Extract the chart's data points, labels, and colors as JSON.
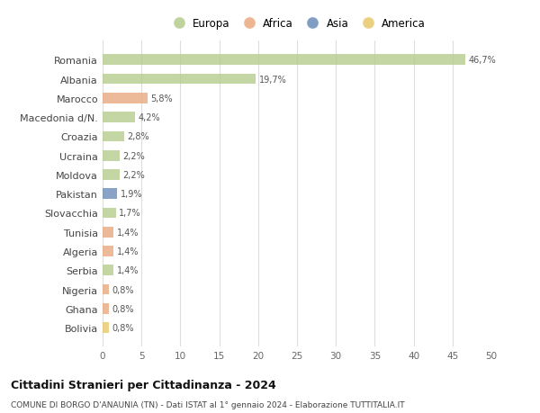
{
  "countries": [
    "Romania",
    "Albania",
    "Marocco",
    "Macedonia d/N.",
    "Croazia",
    "Ucraina",
    "Moldova",
    "Pakistan",
    "Slovacchia",
    "Tunisia",
    "Algeria",
    "Serbia",
    "Nigeria",
    "Ghana",
    "Bolivia"
  ],
  "values": [
    46.7,
    19.7,
    5.8,
    4.2,
    2.8,
    2.2,
    2.2,
    1.9,
    1.7,
    1.4,
    1.4,
    1.4,
    0.8,
    0.8,
    0.8
  ],
  "labels": [
    "46,7%",
    "19,7%",
    "5,8%",
    "4,2%",
    "2,8%",
    "2,2%",
    "2,2%",
    "1,9%",
    "1,7%",
    "1,4%",
    "1,4%",
    "1,4%",
    "0,8%",
    "0,8%",
    "0,8%"
  ],
  "colors": [
    "#b5cc8e",
    "#b5cc8e",
    "#e8a97e",
    "#b5cc8e",
    "#b5cc8e",
    "#b5cc8e",
    "#b5cc8e",
    "#6b8cba",
    "#b5cc8e",
    "#e8a97e",
    "#e8a97e",
    "#b5cc8e",
    "#e8a97e",
    "#e8a97e",
    "#e8c86b"
  ],
  "continent_colors": {
    "Europa": "#b5cc8e",
    "Africa": "#e8a97e",
    "Asia": "#6b8cba",
    "America": "#e8c86b"
  },
  "xlim": [
    0,
    50
  ],
  "xticks": [
    0,
    5,
    10,
    15,
    20,
    25,
    30,
    35,
    40,
    45,
    50
  ],
  "title1": "Cittadini Stranieri per Cittadinanza - 2024",
  "title2": "COMUNE DI BORGO D'ANAUNIA (TN) - Dati ISTAT al 1° gennaio 2024 - Elaborazione TUTTITALIA.IT",
  "bg_color": "#ffffff",
  "grid_color": "#dddddd",
  "bar_height": 0.55
}
